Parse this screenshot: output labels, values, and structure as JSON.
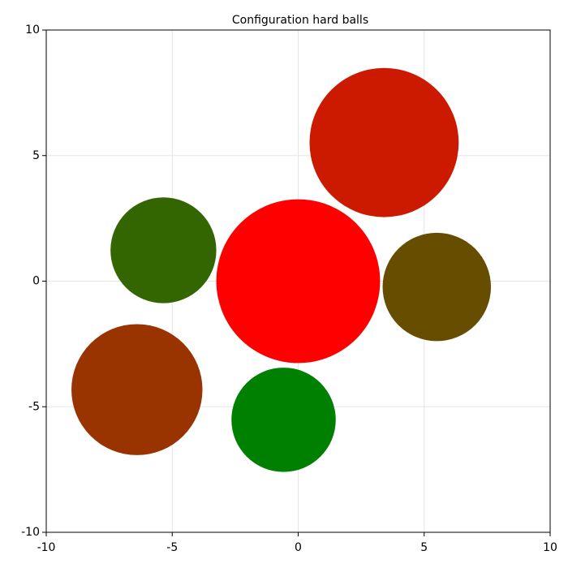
{
  "chart_data": {
    "type": "scatter",
    "title": "Configuration hard balls",
    "x": [
      0,
      3.41,
      -5.35,
      5.5,
      -6.4,
      -0.58
    ],
    "y": [
      0,
      5.52,
      1.23,
      -0.23,
      -4.32,
      -5.52
    ],
    "radii": [
      3.25,
      2.96,
      2.1,
      2.15,
      2.6,
      2.07
    ],
    "colors": [
      "#ff0000",
      "#cc1a00",
      "#336600",
      "#664d00",
      "#993300",
      "#008000"
    ],
    "xlim": [
      -10,
      10
    ],
    "ylim": [
      -10,
      10
    ],
    "xticks": [
      -10,
      -5,
      0,
      5,
      10
    ],
    "yticks": [
      -10,
      -5,
      0,
      5,
      10
    ],
    "grid": true
  }
}
